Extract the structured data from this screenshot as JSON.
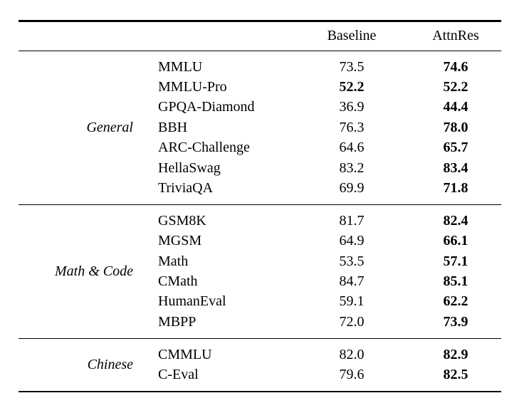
{
  "colors": {
    "background": "#ffffff",
    "text": "#000000",
    "rule": "#000000"
  },
  "table": {
    "headers": {
      "baseline": "Baseline",
      "attnres": "AttnRes"
    },
    "sections": [
      {
        "group": "General",
        "rows": [
          {
            "benchmark": "MMLU",
            "baseline": "73.5",
            "baseline_bold": false,
            "attnres": "74.6",
            "attnres_bold": true
          },
          {
            "benchmark": "MMLU-Pro",
            "baseline": "52.2",
            "baseline_bold": true,
            "attnres": "52.2",
            "attnres_bold": true
          },
          {
            "benchmark": "GPQA-Diamond",
            "baseline": "36.9",
            "baseline_bold": false,
            "attnres": "44.4",
            "attnres_bold": true
          },
          {
            "benchmark": "BBH",
            "baseline": "76.3",
            "baseline_bold": false,
            "attnres": "78.0",
            "attnres_bold": true
          },
          {
            "benchmark": "ARC-Challenge",
            "baseline": "64.6",
            "baseline_bold": false,
            "attnres": "65.7",
            "attnres_bold": true
          },
          {
            "benchmark": "HellaSwag",
            "baseline": "83.2",
            "baseline_bold": false,
            "attnres": "83.4",
            "attnres_bold": true
          },
          {
            "benchmark": "TriviaQA",
            "baseline": "69.9",
            "baseline_bold": false,
            "attnres": "71.8",
            "attnres_bold": true
          }
        ]
      },
      {
        "group": "Math & Code",
        "rows": [
          {
            "benchmark": "GSM8K",
            "baseline": "81.7",
            "baseline_bold": false,
            "attnres": "82.4",
            "attnres_bold": true
          },
          {
            "benchmark": "MGSM",
            "baseline": "64.9",
            "baseline_bold": false,
            "attnres": "66.1",
            "attnres_bold": true
          },
          {
            "benchmark": "Math",
            "baseline": "53.5",
            "baseline_bold": false,
            "attnres": "57.1",
            "attnres_bold": true
          },
          {
            "benchmark": "CMath",
            "baseline": "84.7",
            "baseline_bold": false,
            "attnres": "85.1",
            "attnres_bold": true
          },
          {
            "benchmark": "HumanEval",
            "baseline": "59.1",
            "baseline_bold": false,
            "attnres": "62.2",
            "attnres_bold": true
          },
          {
            "benchmark": "MBPP",
            "baseline": "72.0",
            "baseline_bold": false,
            "attnres": "73.9",
            "attnres_bold": true
          }
        ]
      },
      {
        "group": "Chinese",
        "rows": [
          {
            "benchmark": "CMMLU",
            "baseline": "82.0",
            "baseline_bold": false,
            "attnres": "82.9",
            "attnres_bold": true
          },
          {
            "benchmark": "C-Eval",
            "baseline": "79.6",
            "baseline_bold": false,
            "attnres": "82.5",
            "attnres_bold": true
          }
        ]
      }
    ]
  }
}
